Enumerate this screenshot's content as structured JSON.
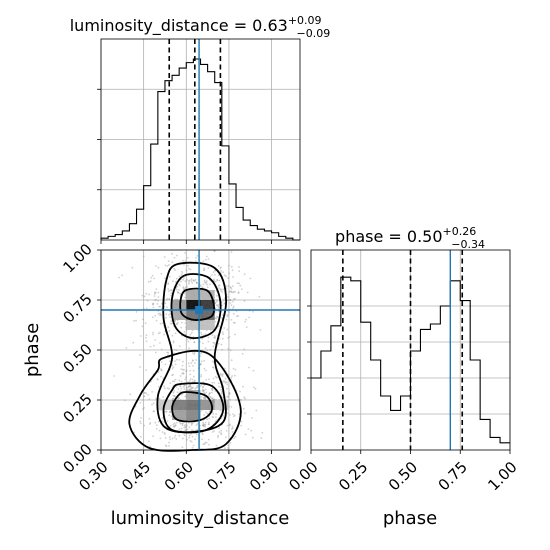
{
  "chart_data": [
    {
      "type": "histogram",
      "panel": "luminosity_distance-marginal",
      "parameter": "luminosity_distance",
      "title": {
        "main": "luminosity_distance = 0.63",
        "sup": "+0.09",
        "sub": "−0.09"
      },
      "xlim": [
        0.3,
        1.0
      ],
      "bin_edges": [
        0.3,
        0.325,
        0.35,
        0.375,
        0.4,
        0.425,
        0.45,
        0.475,
        0.5,
        0.525,
        0.55,
        0.575,
        0.6,
        0.625,
        0.65,
        0.675,
        0.7,
        0.725,
        0.75,
        0.775,
        0.8,
        0.825,
        0.85,
        0.875,
        0.9,
        0.925,
        0.95,
        0.975,
        1.0
      ],
      "density": [
        0.01,
        0.02,
        0.03,
        0.05,
        0.09,
        0.17,
        0.3,
        0.53,
        0.82,
        0.88,
        0.91,
        0.95,
        0.98,
        1.0,
        0.97,
        0.93,
        0.87,
        0.52,
        0.31,
        0.18,
        0.11,
        0.08,
        0.06,
        0.05,
        0.04,
        0.02,
        0.01,
        0.0
      ],
      "quantiles": [
        0.54,
        0.63,
        0.72
      ],
      "truth": 0.645
    },
    {
      "type": "histogram",
      "panel": "phase-marginal",
      "parameter": "phase",
      "title": {
        "main": "phase = 0.50",
        "sup": "+0.26",
        "sub": "−0.34"
      },
      "xlim": [
        0.0,
        1.0
      ],
      "xticks": [
        "0.00",
        "0.25",
        "0.50",
        "0.75",
        "1.00"
      ],
      "xlabel": "phase",
      "bin_edges": [
        0.0,
        0.05,
        0.1,
        0.15,
        0.2,
        0.25,
        0.3,
        0.35,
        0.4,
        0.45,
        0.5,
        0.55,
        0.6,
        0.65,
        0.7,
        0.75,
        0.8,
        0.85,
        0.9,
        0.95,
        1.0
      ],
      "density": [
        0.4,
        0.55,
        0.69,
        0.96,
        0.94,
        0.71,
        0.5,
        0.3,
        0.22,
        0.3,
        0.55,
        0.67,
        0.7,
        0.8,
        0.94,
        0.83,
        0.5,
        0.17,
        0.07,
        0.04
      ],
      "quantiles": [
        0.16,
        0.5,
        0.76
      ],
      "truth": 0.7
    },
    {
      "type": "scatter",
      "panel": "joint-2d",
      "x_parameter": "luminosity_distance",
      "y_parameter": "phase",
      "xlabel": "luminosity_distance",
      "ylabel": "phase",
      "xlim": [
        0.3,
        1.0
      ],
      "ylim": [
        0.0,
        1.0
      ],
      "xticks": [
        "0.30",
        "0.45",
        "0.60",
        "0.75",
        "0.90"
      ],
      "yticks": [
        "0.00",
        "0.25",
        "0.50",
        "0.75",
        "1.00"
      ],
      "density_bins": [
        {
          "x": 0.625,
          "y": 0.725,
          "level": 1.0
        },
        {
          "x": 0.675,
          "y": 0.725,
          "level": 0.8
        },
        {
          "x": 0.625,
          "y": 0.675,
          "level": 0.55
        },
        {
          "x": 0.675,
          "y": 0.675,
          "level": 0.6
        },
        {
          "x": 0.575,
          "y": 0.725,
          "level": 0.35
        },
        {
          "x": 0.575,
          "y": 0.675,
          "level": 0.3
        },
        {
          "x": 0.625,
          "y": 0.775,
          "level": 0.3
        },
        {
          "x": 0.675,
          "y": 0.775,
          "level": 0.25
        },
        {
          "x": 0.625,
          "y": 0.625,
          "level": 0.2
        },
        {
          "x": 0.675,
          "y": 0.625,
          "level": 0.2
        },
        {
          "x": 0.625,
          "y": 0.225,
          "level": 0.55
        },
        {
          "x": 0.575,
          "y": 0.225,
          "level": 0.5
        },
        {
          "x": 0.675,
          "y": 0.225,
          "level": 0.4
        },
        {
          "x": 0.625,
          "y": 0.175,
          "level": 0.45
        },
        {
          "x": 0.575,
          "y": 0.175,
          "level": 0.35
        },
        {
          "x": 0.625,
          "y": 0.275,
          "level": 0.3
        },
        {
          "x": 0.525,
          "y": 0.225,
          "level": 0.15
        },
        {
          "x": 0.725,
          "y": 0.225,
          "level": 0.15
        }
      ],
      "truth": {
        "x": 0.645,
        "y": 0.7
      },
      "contours": [
        [
          [
            0.6,
            0.8
          ],
          [
            0.67,
            0.8
          ],
          [
            0.695,
            0.74
          ],
          [
            0.69,
            0.67
          ],
          [
            0.63,
            0.65
          ],
          [
            0.585,
            0.68
          ],
          [
            0.58,
            0.75
          ]
        ],
        [
          [
            0.59,
            0.87
          ],
          [
            0.68,
            0.86
          ],
          [
            0.72,
            0.74
          ],
          [
            0.7,
            0.6
          ],
          [
            0.62,
            0.56
          ],
          [
            0.56,
            0.62
          ],
          [
            0.55,
            0.76
          ]
        ],
        [
          [
            0.57,
            0.93
          ],
          [
            0.7,
            0.91
          ],
          [
            0.74,
            0.74
          ],
          [
            0.7,
            0.47
          ],
          [
            0.73,
            0.3
          ],
          [
            0.73,
            0.14
          ],
          [
            0.62,
            0.09
          ],
          [
            0.52,
            0.12
          ],
          [
            0.5,
            0.27
          ],
          [
            0.55,
            0.46
          ],
          [
            0.52,
            0.66
          ],
          [
            0.53,
            0.85
          ]
        ],
        [
          [
            0.6,
            0.29
          ],
          [
            0.67,
            0.27
          ],
          [
            0.69,
            0.2
          ],
          [
            0.65,
            0.15
          ],
          [
            0.57,
            0.15
          ],
          [
            0.55,
            0.21
          ],
          [
            0.57,
            0.27
          ]
        ],
        [
          [
            0.58,
            0.33
          ],
          [
            0.69,
            0.32
          ],
          [
            0.73,
            0.2
          ],
          [
            0.67,
            0.1
          ],
          [
            0.55,
            0.1
          ],
          [
            0.52,
            0.2
          ],
          [
            0.55,
            0.3
          ]
        ],
        [
          [
            0.52,
            0.46
          ],
          [
            0.68,
            0.48
          ],
          [
            0.79,
            0.22
          ],
          [
            0.74,
            0.03
          ],
          [
            0.62,
            0.0
          ],
          [
            0.47,
            0.01
          ],
          [
            0.4,
            0.13
          ],
          [
            0.44,
            0.28
          ],
          [
            0.5,
            0.4
          ]
        ]
      ]
    }
  ]
}
